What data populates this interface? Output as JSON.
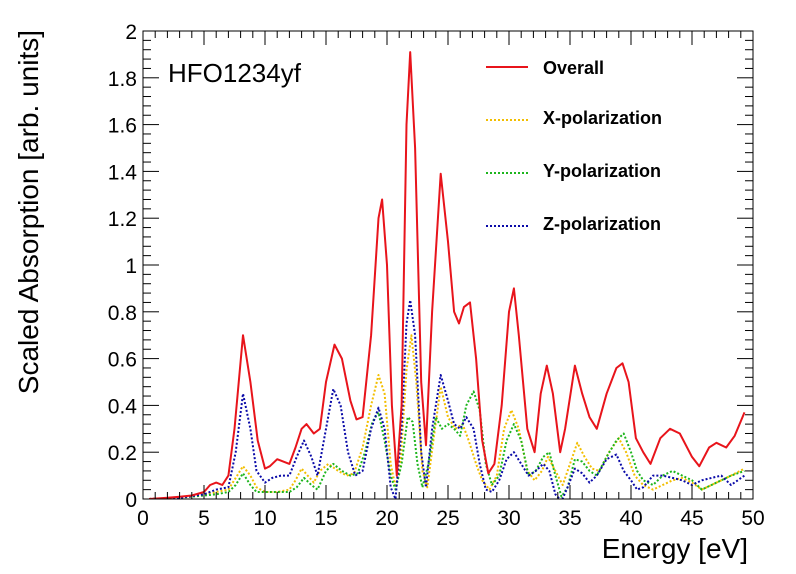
{
  "chart_data": {
    "type": "line",
    "title": "",
    "annotation": "HFO1234yf",
    "xlabel": "Energy [eV]",
    "ylabel": "Scaled Absorption [arb. units]",
    "xlim": [
      0,
      50
    ],
    "ylim": [
      0,
      2
    ],
    "xticks": [
      "0",
      "5",
      "10",
      "15",
      "20",
      "25",
      "30",
      "35",
      "40",
      "45",
      "50"
    ],
    "yticks": [
      "0",
      "0.2",
      "0.4",
      "0.6",
      "0.8",
      "1",
      "1.2",
      "1.4",
      "1.6",
      "1.8",
      "2"
    ],
    "grid": false,
    "legend_position": "top-right",
    "series": [
      {
        "name": "Overall",
        "color": "#e8141b",
        "style": "solid",
        "points": [
          [
            0.5,
            0
          ],
          [
            2,
            0.005
          ],
          [
            3,
            0.01
          ],
          [
            4,
            0.015
          ],
          [
            5,
            0.03
          ],
          [
            5.5,
            0.06
          ],
          [
            6,
            0.07
          ],
          [
            6.5,
            0.06
          ],
          [
            7,
            0.1
          ],
          [
            7.5,
            0.3
          ],
          [
            8.2,
            0.7
          ],
          [
            8.8,
            0.5
          ],
          [
            9.4,
            0.25
          ],
          [
            10,
            0.13
          ],
          [
            10.4,
            0.14
          ],
          [
            11,
            0.17
          ],
          [
            11.5,
            0.16
          ],
          [
            12,
            0.15
          ],
          [
            12.5,
            0.22
          ],
          [
            13,
            0.3
          ],
          [
            13.4,
            0.32
          ],
          [
            14,
            0.28
          ],
          [
            14.5,
            0.3
          ],
          [
            15,
            0.5
          ],
          [
            15.7,
            0.66
          ],
          [
            16.3,
            0.6
          ],
          [
            17,
            0.42
          ],
          [
            17.5,
            0.34
          ],
          [
            18,
            0.35
          ],
          [
            18.7,
            0.7
          ],
          [
            19.3,
            1.2
          ],
          [
            19.6,
            1.28
          ],
          [
            20,
            1.0
          ],
          [
            20.4,
            0.4
          ],
          [
            20.8,
            0.1
          ],
          [
            21.2,
            0.4
          ],
          [
            21.6,
            1.6
          ],
          [
            21.9,
            1.91
          ],
          [
            22.3,
            1.5
          ],
          [
            22.8,
            0.5
          ],
          [
            23.2,
            0.23
          ],
          [
            23.7,
            0.8
          ],
          [
            24.4,
            1.39
          ],
          [
            25,
            1.1
          ],
          [
            25.5,
            0.8
          ],
          [
            25.9,
            0.75
          ],
          [
            26.3,
            0.82
          ],
          [
            26.8,
            0.84
          ],
          [
            27.3,
            0.6
          ],
          [
            27.8,
            0.25
          ],
          [
            28.3,
            0.11
          ],
          [
            28.8,
            0.15
          ],
          [
            29.4,
            0.4
          ],
          [
            30,
            0.8
          ],
          [
            30.4,
            0.9
          ],
          [
            30.8,
            0.7
          ],
          [
            31.5,
            0.3
          ],
          [
            32.1,
            0.2
          ],
          [
            32.6,
            0.45
          ],
          [
            33.1,
            0.57
          ],
          [
            33.6,
            0.45
          ],
          [
            34.2,
            0.2
          ],
          [
            34.6,
            0.3
          ],
          [
            35.4,
            0.57
          ],
          [
            36,
            0.45
          ],
          [
            36.6,
            0.35
          ],
          [
            37.2,
            0.3
          ],
          [
            38,
            0.45
          ],
          [
            38.8,
            0.56
          ],
          [
            39.3,
            0.58
          ],
          [
            39.8,
            0.5
          ],
          [
            40.4,
            0.26
          ],
          [
            41,
            0.2
          ],
          [
            41.6,
            0.15
          ],
          [
            42.4,
            0.26
          ],
          [
            43.2,
            0.3
          ],
          [
            44,
            0.28
          ],
          [
            45,
            0.18
          ],
          [
            45.6,
            0.14
          ],
          [
            46.4,
            0.22
          ],
          [
            47,
            0.24
          ],
          [
            47.8,
            0.22
          ],
          [
            48.5,
            0.27
          ],
          [
            49.3,
            0.37
          ]
        ]
      },
      {
        "name": "X-polarization",
        "color": "#f2be00",
        "style": "dotted",
        "points": [
          [
            0.5,
            0
          ],
          [
            3,
            0.005
          ],
          [
            5,
            0.02
          ],
          [
            6,
            0.03
          ],
          [
            7,
            0.04
          ],
          [
            7.6,
            0.09
          ],
          [
            8.2,
            0.14
          ],
          [
            8.8,
            0.1
          ],
          [
            9.3,
            0.05
          ],
          [
            10,
            0.03
          ],
          [
            11,
            0.03
          ],
          [
            12,
            0.04
          ],
          [
            12.5,
            0.08
          ],
          [
            13,
            0.13
          ],
          [
            13.5,
            0.1
          ],
          [
            14,
            0.07
          ],
          [
            14.5,
            0.12
          ],
          [
            15.2,
            0.15
          ],
          [
            16,
            0.12
          ],
          [
            16.7,
            0.1
          ],
          [
            17.3,
            0.11
          ],
          [
            18,
            0.22
          ],
          [
            18.7,
            0.4
          ],
          [
            19.3,
            0.53
          ],
          [
            19.8,
            0.45
          ],
          [
            20.3,
            0.15
          ],
          [
            20.7,
            0.05
          ],
          [
            21.1,
            0.15
          ],
          [
            21.6,
            0.55
          ],
          [
            22,
            0.7
          ],
          [
            22.4,
            0.5
          ],
          [
            22.9,
            0.12
          ],
          [
            23.3,
            0.05
          ],
          [
            23.8,
            0.25
          ],
          [
            24.4,
            0.48
          ],
          [
            25,
            0.35
          ],
          [
            25.6,
            0.3
          ],
          [
            26.2,
            0.32
          ],
          [
            26.7,
            0.25
          ],
          [
            27.3,
            0.15
          ],
          [
            27.8,
            0.08
          ],
          [
            28.4,
            0.04
          ],
          [
            29,
            0.1
          ],
          [
            29.6,
            0.3
          ],
          [
            30.2,
            0.38
          ],
          [
            30.8,
            0.3
          ],
          [
            31.5,
            0.12
          ],
          [
            32.1,
            0.08
          ],
          [
            32.7,
            0.12
          ],
          [
            33.2,
            0.18
          ],
          [
            33.8,
            0.12
          ],
          [
            34.4,
            0.06
          ],
          [
            35,
            0.15
          ],
          [
            35.6,
            0.24
          ],
          [
            36.2,
            0.18
          ],
          [
            36.8,
            0.13
          ],
          [
            37.4,
            0.12
          ],
          [
            38.2,
            0.2
          ],
          [
            39,
            0.26
          ],
          [
            39.6,
            0.2
          ],
          [
            40.3,
            0.1
          ],
          [
            41,
            0.06
          ],
          [
            41.8,
            0.04
          ],
          [
            42.6,
            0.06
          ],
          [
            43.4,
            0.08
          ],
          [
            44.2,
            0.09
          ],
          [
            45,
            0.07
          ],
          [
            45.8,
            0.04
          ],
          [
            46.6,
            0.06
          ],
          [
            47.4,
            0.08
          ],
          [
            48.2,
            0.1
          ],
          [
            49.3,
            0.13
          ]
        ]
      },
      {
        "name": "Y-polarization",
        "color": "#1db51d",
        "style": "dotted",
        "points": [
          [
            0.5,
            0
          ],
          [
            3,
            0.005
          ],
          [
            5,
            0.015
          ],
          [
            6,
            0.02
          ],
          [
            7,
            0.03
          ],
          [
            7.6,
            0.06
          ],
          [
            8.2,
            0.11
          ],
          [
            8.8,
            0.06
          ],
          [
            9.3,
            0.03
          ],
          [
            10,
            0.03
          ],
          [
            11,
            0.03
          ],
          [
            12,
            0.03
          ],
          [
            12.6,
            0.05
          ],
          [
            13.2,
            0.09
          ],
          [
            13.8,
            0.06
          ],
          [
            14.3,
            0.04
          ],
          [
            15,
            0.12
          ],
          [
            15.6,
            0.15
          ],
          [
            16.3,
            0.12
          ],
          [
            17,
            0.1
          ],
          [
            17.6,
            0.11
          ],
          [
            18.2,
            0.2
          ],
          [
            18.8,
            0.33
          ],
          [
            19.3,
            0.37
          ],
          [
            19.8,
            0.25
          ],
          [
            20.3,
            0.1
          ],
          [
            20.7,
            0.04
          ],
          [
            21.2,
            0.15
          ],
          [
            21.7,
            0.35
          ],
          [
            22.1,
            0.33
          ],
          [
            22.5,
            0.15
          ],
          [
            22.9,
            0.05
          ],
          [
            23.4,
            0.15
          ],
          [
            24,
            0.35
          ],
          [
            24.5,
            0.3
          ],
          [
            25,
            0.32
          ],
          [
            25.5,
            0.3
          ],
          [
            26,
            0.27
          ],
          [
            26.5,
            0.4
          ],
          [
            27.1,
            0.46
          ],
          [
            27.6,
            0.38
          ],
          [
            28.1,
            0.15
          ],
          [
            28.6,
            0.06
          ],
          [
            29.2,
            0.1
          ],
          [
            29.8,
            0.25
          ],
          [
            30.4,
            0.32
          ],
          [
            31,
            0.25
          ],
          [
            31.6,
            0.1
          ],
          [
            32.2,
            0.12
          ],
          [
            32.8,
            0.18
          ],
          [
            33.3,
            0.2
          ],
          [
            33.8,
            0.1
          ],
          [
            34.3,
            0.01
          ],
          [
            34.8,
            0.05
          ],
          [
            35.4,
            0.17
          ],
          [
            36,
            0.16
          ],
          [
            36.6,
            0.12
          ],
          [
            37.2,
            0.1
          ],
          [
            38,
            0.18
          ],
          [
            38.8,
            0.25
          ],
          [
            39.4,
            0.28
          ],
          [
            40,
            0.2
          ],
          [
            40.5,
            0.12
          ],
          [
            41,
            0.08
          ],
          [
            41.8,
            0.06
          ],
          [
            42.6,
            0.1
          ],
          [
            43.4,
            0.12
          ],
          [
            44.2,
            0.1
          ],
          [
            45,
            0.08
          ],
          [
            45.8,
            0.04
          ],
          [
            46.6,
            0.06
          ],
          [
            47.4,
            0.08
          ],
          [
            48.2,
            0.1
          ],
          [
            49.3,
            0.12
          ]
        ]
      },
      {
        "name": "Z-polarization",
        "color": "#0a0aa8",
        "style": "dotted",
        "points": [
          [
            0.5,
            0
          ],
          [
            3,
            0.005
          ],
          [
            5,
            0.02
          ],
          [
            6,
            0.04
          ],
          [
            7,
            0.05
          ],
          [
            7.6,
            0.2
          ],
          [
            8.2,
            0.45
          ],
          [
            8.8,
            0.3
          ],
          [
            9.3,
            0.12
          ],
          [
            10,
            0.07
          ],
          [
            10.6,
            0.09
          ],
          [
            11.3,
            0.1
          ],
          [
            12,
            0.1
          ],
          [
            12.6,
            0.18
          ],
          [
            13.2,
            0.25
          ],
          [
            13.8,
            0.18
          ],
          [
            14.3,
            0.1
          ],
          [
            15,
            0.3
          ],
          [
            15.6,
            0.47
          ],
          [
            16.2,
            0.4
          ],
          [
            16.8,
            0.2
          ],
          [
            17.4,
            0.1
          ],
          [
            18,
            0.12
          ],
          [
            18.7,
            0.3
          ],
          [
            19.3,
            0.39
          ],
          [
            19.8,
            0.3
          ],
          [
            20.3,
            0.05
          ],
          [
            20.7,
            0.0
          ],
          [
            21.2,
            0.3
          ],
          [
            21.6,
            0.75
          ],
          [
            21.9,
            0.85
          ],
          [
            22.3,
            0.7
          ],
          [
            22.8,
            0.2
          ],
          [
            23.2,
            0.05
          ],
          [
            23.7,
            0.3
          ],
          [
            24.4,
            0.53
          ],
          [
            25,
            0.42
          ],
          [
            25.5,
            0.32
          ],
          [
            26,
            0.3
          ],
          [
            26.5,
            0.35
          ],
          [
            27.1,
            0.3
          ],
          [
            27.6,
            0.15
          ],
          [
            28.1,
            0.04
          ],
          [
            28.6,
            0.03
          ],
          [
            29.2,
            0.08
          ],
          [
            29.8,
            0.17
          ],
          [
            30.4,
            0.2
          ],
          [
            31,
            0.15
          ],
          [
            31.6,
            0.1
          ],
          [
            32.2,
            0.12
          ],
          [
            32.8,
            0.15
          ],
          [
            33.3,
            0.12
          ],
          [
            33.8,
            0.02
          ],
          [
            34.3,
            -0.01
          ],
          [
            34.8,
            0.05
          ],
          [
            35.4,
            0.13
          ],
          [
            36,
            0.11
          ],
          [
            36.6,
            0.07
          ],
          [
            37.2,
            0.1
          ],
          [
            38,
            0.17
          ],
          [
            38.8,
            0.19
          ],
          [
            39.4,
            0.12
          ],
          [
            40,
            0.08
          ],
          [
            40.5,
            0.04
          ],
          [
            41,
            0.05
          ],
          [
            41.8,
            0.1
          ],
          [
            42.6,
            0.1
          ],
          [
            43.4,
            0.09
          ],
          [
            44.2,
            0.08
          ],
          [
            45,
            0.06
          ],
          [
            45.8,
            0.08
          ],
          [
            46.6,
            0.09
          ],
          [
            47.4,
            0.1
          ],
          [
            48.2,
            0.06
          ],
          [
            49.3,
            0.1
          ]
        ]
      }
    ]
  }
}
